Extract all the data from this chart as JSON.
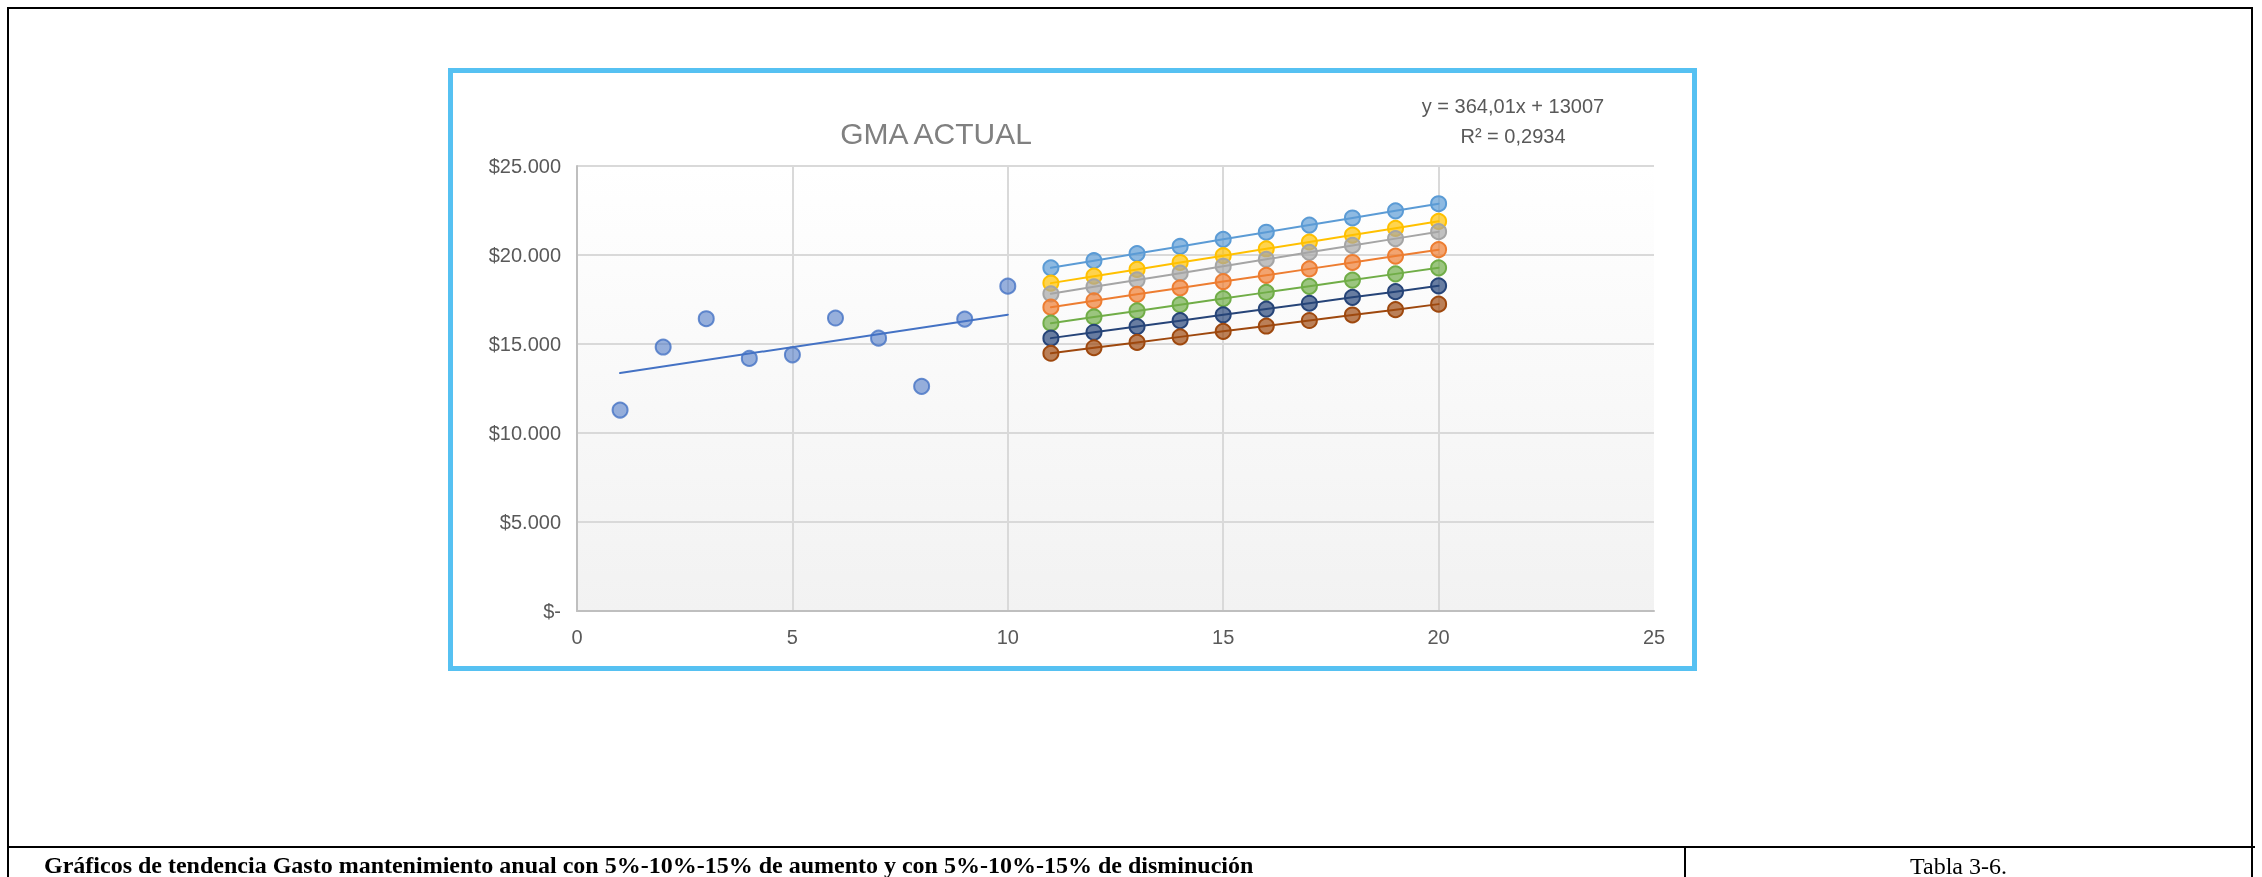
{
  "chart_data": {
    "type": "scatter",
    "title": "GMA ACTUAL",
    "xlim": [
      0,
      25
    ],
    "xticks": [
      0,
      5,
      10,
      15,
      20,
      25
    ],
    "ylim": [
      0,
      25000
    ],
    "yticks": [
      {
        "value": 0,
        "label": "$-"
      },
      {
        "value": 5000,
        "label": "$5.000"
      },
      {
        "value": 10000,
        "label": "$10.000"
      },
      {
        "value": 15000,
        "label": "$15.000"
      },
      {
        "value": 20000,
        "label": "$20.000"
      },
      {
        "value": 25000,
        "label": "$25.000"
      }
    ],
    "grid": true,
    "annotations": [
      "y = 364,01x + 13007",
      "R² = 0,2934",
      "Gráficos de tendencia Gasto mantenimiento anual con 5%-10%-15% de aumento y con 5%-10%-15% de disminución",
      "Tabla 3-6."
    ],
    "series": [
      {
        "type": "scatter",
        "marker": "circle",
        "color": "#4472c4",
        "x": [
          1,
          2,
          3,
          4,
          5,
          6,
          7,
          8,
          9,
          10
        ],
        "values": [
          11290,
          14830,
          16420,
          14190,
          14390,
          16460,
          15330,
          12620,
          16400,
          18250
        ]
      },
      {
        "type": "line",
        "marker": "none",
        "color": "#4472c4",
        "x": [
          1,
          10
        ],
        "values": [
          13371,
          16647
        ]
      },
      {
        "type": "line",
        "marker": "circle",
        "color": "#5b9bd5",
        "x": [
          11,
          12,
          13,
          14,
          15,
          16,
          17,
          18,
          19,
          20
        ],
        "values": [
          19280,
          19680,
          20080,
          20480,
          20880,
          21280,
          21680,
          22080,
          22480,
          22880
        ]
      },
      {
        "type": "line",
        "marker": "circle",
        "color": "#ffc000",
        "x": [
          11,
          12,
          13,
          14,
          15,
          16,
          17,
          18,
          19,
          20
        ],
        "values": [
          18420,
          18810,
          19190,
          19580,
          19960,
          20350,
          20730,
          21120,
          21500,
          21890
        ]
      },
      {
        "type": "line",
        "marker": "circle",
        "color": "#a5a5a5",
        "x": [
          11,
          12,
          13,
          14,
          15,
          16,
          17,
          18,
          19,
          20
        ],
        "values": [
          17820,
          18210,
          18600,
          18980,
          19370,
          19760,
          20150,
          20540,
          20920,
          21310
        ]
      },
      {
        "type": "line",
        "marker": "circle",
        "color": "#ed7d31",
        "x": [
          11,
          12,
          13,
          14,
          15,
          16,
          17,
          18,
          19,
          20
        ],
        "values": [
          17070,
          17430,
          17790,
          18150,
          18510,
          18860,
          19220,
          19580,
          19940,
          20300
        ]
      },
      {
        "type": "line",
        "marker": "circle",
        "color": "#70ad47",
        "x": [
          11,
          12,
          13,
          14,
          15,
          16,
          17,
          18,
          19,
          20
        ],
        "values": [
          16170,
          16520,
          16860,
          17210,
          17550,
          17900,
          18240,
          18590,
          18940,
          19280
        ]
      },
      {
        "type": "line",
        "marker": "circle",
        "color": "#264478",
        "x": [
          11,
          12,
          13,
          14,
          15,
          16,
          17,
          18,
          19,
          20
        ],
        "values": [
          15330,
          15660,
          15980,
          16310,
          16640,
          16960,
          17290,
          17620,
          17940,
          18270
        ]
      },
      {
        "type": "line",
        "marker": "circle",
        "color": "#9e480e",
        "x": [
          11,
          12,
          13,
          14,
          15,
          16,
          17,
          18,
          19,
          20
        ],
        "values": [
          14480,
          14790,
          15090,
          15400,
          15710,
          16010,
          16320,
          16630,
          16930,
          17240
        ]
      }
    ]
  }
}
